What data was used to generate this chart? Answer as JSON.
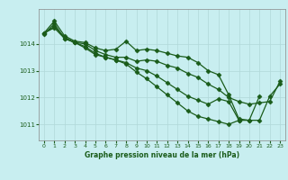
{
  "title": "Graphe pression niveau de la mer (hPa)",
  "bg_color": "#c8eef0",
  "grid_color": "#b0d8d8",
  "line_color": "#1a5c1a",
  "marker": "D",
  "markersize": 2.5,
  "linewidth": 0.9,
  "xlim": [
    -0.5,
    23.5
  ],
  "ylim": [
    1010.4,
    1015.3
  ],
  "yticks": [
    1011,
    1012,
    1013,
    1014
  ],
  "xticks": [
    0,
    1,
    2,
    3,
    4,
    5,
    6,
    7,
    8,
    9,
    10,
    11,
    12,
    13,
    14,
    15,
    16,
    17,
    18,
    19,
    20,
    21,
    22,
    23
  ],
  "series": [
    [
      1014.4,
      1014.85,
      1014.3,
      1014.1,
      1014.05,
      1013.85,
      1013.75,
      1013.8,
      1014.1,
      1013.75,
      1013.8,
      1013.75,
      1013.65,
      1013.55,
      1013.5,
      1013.3,
      1013.0,
      1012.85,
      1012.1,
      1011.2,
      1011.15,
      1011.15,
      1012.05,
      1012.5
    ],
    [
      1014.4,
      1014.65,
      1014.25,
      1014.05,
      1014.0,
      1013.75,
      1013.6,
      1013.5,
      1013.5,
      1013.35,
      1013.4,
      1013.35,
      1013.2,
      1013.1,
      1012.9,
      1012.75,
      1012.5,
      1012.3,
      1012.0,
      1011.85,
      1011.75,
      1011.8,
      1011.85,
      1012.6
    ],
    [
      1014.4,
      1014.6,
      1014.2,
      1014.05,
      1013.9,
      1013.65,
      1013.5,
      1013.4,
      1013.3,
      1013.1,
      1013.0,
      1012.8,
      1012.55,
      1012.3,
      1012.05,
      1011.9,
      1011.75,
      1011.95,
      1011.85,
      1011.15,
      1011.15,
      1012.05,
      null,
      null
    ],
    [
      1014.35,
      1014.75,
      1014.2,
      1014.05,
      1013.85,
      1013.6,
      1013.5,
      1013.4,
      1013.25,
      1012.95,
      1012.7,
      1012.4,
      1012.1,
      1011.8,
      1011.5,
      1011.3,
      1011.2,
      1011.1,
      1011.0,
      1011.15,
      null,
      null,
      null,
      null
    ]
  ]
}
